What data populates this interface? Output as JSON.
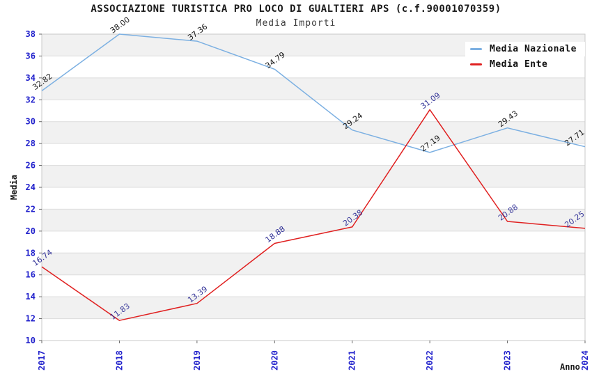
{
  "chart_data": {
    "type": "line",
    "title": "ASSOCIAZIONE TURISTICA PRO LOCO DI GUALTIERI APS (c.f.90001070359)",
    "subtitle": "Media Importi",
    "xlabel": "Anno",
    "ylabel": "Media",
    "x": [
      "2017",
      "2018",
      "2019",
      "2020",
      "2021",
      "2022",
      "2023",
      "2024"
    ],
    "series": [
      {
        "name": "Media Nazionale",
        "color": "#7cb0e2",
        "label_color": "#1a1a1a",
        "values": [
          32.82,
          38.0,
          37.36,
          34.79,
          29.24,
          27.19,
          29.43,
          27.71
        ]
      },
      {
        "name": "Media Ente",
        "color": "#e02020",
        "label_color": "#363699",
        "values": [
          16.74,
          11.83,
          13.39,
          18.88,
          20.38,
          31.09,
          20.88,
          20.25
        ]
      }
    ],
    "ylim": [
      10,
      38
    ],
    "ytick_step": 2,
    "grid": "horizontal-bands",
    "legend_position": "top-right",
    "band_color": "#f1f1f1",
    "tick_label_color": "#2222cc",
    "point_labels": "values shown rotated at each point, 2 decimals"
  }
}
